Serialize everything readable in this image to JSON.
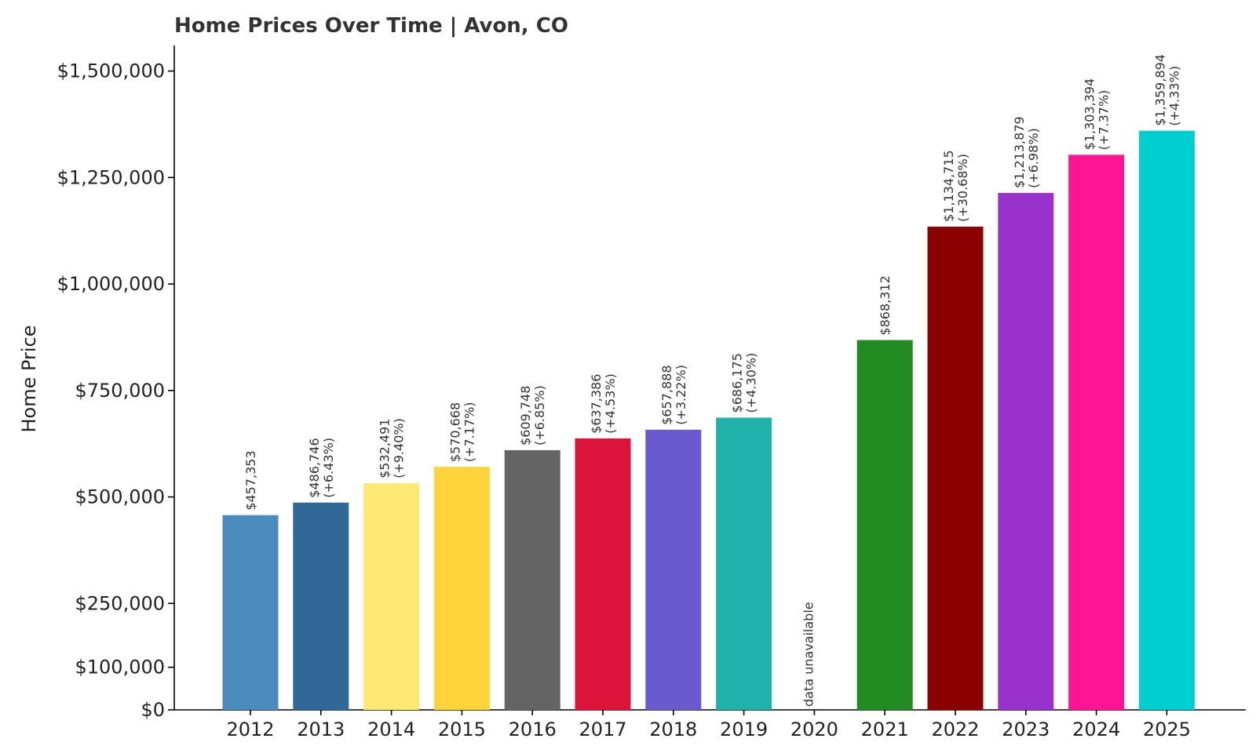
{
  "chart_data": {
    "type": "bar",
    "title": "Home Prices Over Time | Avon, CO",
    "xlabel": "",
    "ylabel": "Home Price",
    "ylim": [
      0,
      1560000
    ],
    "yticks": [
      0,
      100000,
      250000,
      500000,
      750000,
      1000000,
      1250000,
      1500000
    ],
    "ytick_labels": [
      "$0",
      "$100,000",
      "$250,000",
      "$500,000",
      "$750,000",
      "$1,000,000",
      "$1,250,000",
      "$1,500,000"
    ],
    "grid": false,
    "legend": "none",
    "categories": [
      "2012",
      "2013",
      "2014",
      "2015",
      "2016",
      "2017",
      "2018",
      "2019",
      "2020",
      "2021",
      "2022",
      "2023",
      "2024",
      "2025"
    ],
    "values": [
      457353,
      486746,
      532491,
      570668,
      609748,
      637386,
      657888,
      686175,
      null,
      868312,
      1134715,
      1213879,
      1303394,
      1359894
    ],
    "value_labels": [
      "$457,353",
      "$486,746",
      "$532,491",
      "$570,668",
      "$609,748",
      "$637,386",
      "$657,888",
      "$686,175",
      "data unavailable",
      "$868,312",
      "$1,134,715",
      "$1,213,879",
      "$1,303,394",
      "$1,359,894"
    ],
    "change_labels": [
      "",
      "(+6.43%)",
      "(+9.40%)",
      "(+7.17%)",
      "(+6.85%)",
      "(+4.53%)",
      "(+3.22%)",
      "(+4.30%)",
      "",
      "",
      "(+30.68%)",
      "(+6.98%)",
      "(+7.37%)",
      "(+4.33%)"
    ],
    "colors": [
      "#4b8bbe",
      "#306998",
      "#ffe873",
      "#ffd43b",
      "#646464",
      "#dc143c",
      "#6a5acd",
      "#20b2aa",
      "#ffffff",
      "#228b22",
      "#8b0000",
      "#9932cc",
      "#ff1493",
      "#00ced1"
    ]
  }
}
